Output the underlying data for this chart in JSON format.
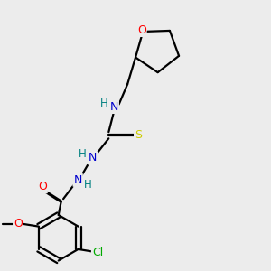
{
  "background_color": "#ececec",
  "atom_colors": {
    "O": "#ff0000",
    "N": "#0000cd",
    "S": "#cccc00",
    "Cl": "#00aa00",
    "H": "#008080",
    "C": "#000000"
  },
  "figsize": [
    3.0,
    3.0
  ],
  "dpi": 100
}
